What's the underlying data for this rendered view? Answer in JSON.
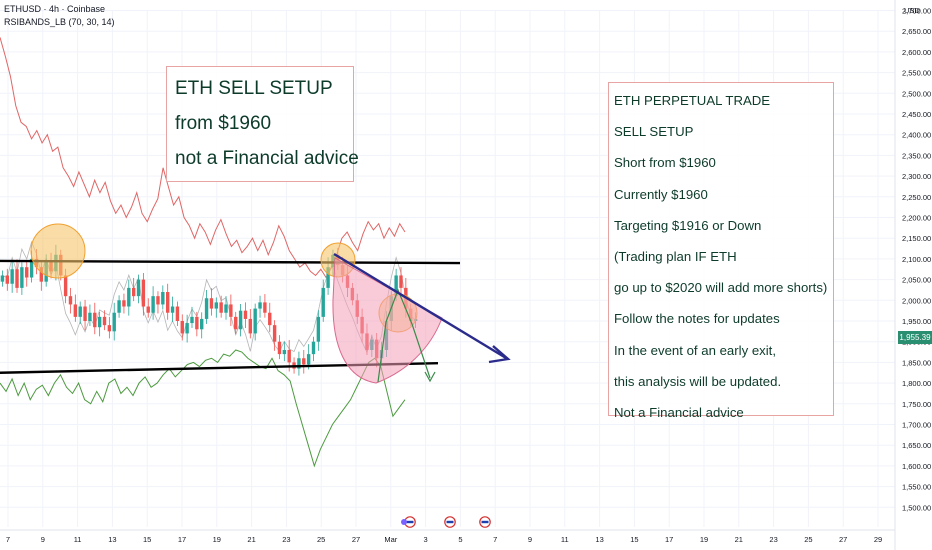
{
  "header": {
    "symbol_line": "ETHUSD · 4h · Coinbase",
    "indicator_line": "RSIBANDS_LB (70, 30, 14)"
  },
  "notes": {
    "left_box": [
      "ETH SELL SETUP",
      "from $1960",
      "not a Financial advice"
    ],
    "right_box": [
      "ETH PERPETUAL TRADE",
      "SELL SETUP",
      "Short from $1960",
      "Currently $1960",
      "Targeting $1916 or Down",
      "(Trading plan IF ETH",
      "go up to $2020 will add more shorts)",
      "Follow the notes for updates",
      "In the event of an early exit,",
      "this analysis will be updated.",
      "Not a Financial advice"
    ]
  },
  "colors": {
    "up_candle": "#26a69a",
    "down_candle": "#ef5350",
    "upper_band": "#e06666",
    "lower_band": "#4c9a3f",
    "middle_line": "#b5b5b5",
    "arrow": "#2b2b8c",
    "circle_fill": "#f6c56b",
    "circle_stroke": "#f0a030",
    "pattern_fill": "#f4a0b8",
    "price_badge": "#2a8f70"
  },
  "chart_data": {
    "type": "candlestick",
    "symbol": "ETHUSD",
    "timeframe": "4h",
    "exchange": "Coinbase",
    "currency_label": "USD",
    "y_axis": {
      "range": [
        1500,
        2700
      ],
      "ticks": [
        "2,700.00",
        "2,650.00",
        "2,600.00",
        "2,550.00",
        "2,500.00",
        "2,450.00",
        "2,400.00",
        "2,350.00",
        "2,300.00",
        "2,250.00",
        "2,200.00",
        "2,150.00",
        "2,100.00",
        "2,050.00",
        "2,000.00",
        "1,950.00",
        "1,900.00",
        "1,850.00",
        "1,800.00",
        "1,750.00",
        "1,700.00",
        "1,650.00",
        "1,600.00",
        "1,550.00",
        "1,500.00"
      ]
    },
    "x_axis": {
      "ticks": [
        "7",
        "9",
        "11",
        "13",
        "15",
        "17",
        "19",
        "21",
        "23",
        "25",
        "27",
        "Mar",
        "3",
        "5",
        "7",
        "9",
        "11",
        "13",
        "15",
        "17",
        "19",
        "21",
        "23",
        "25",
        "27",
        "29"
      ]
    },
    "last_price": "1,955.39",
    "price_path": [
      2060,
      2040,
      2075,
      2030,
      2080,
      2055,
      2100,
      2080,
      2045,
      2095,
      2070,
      2110,
      2060,
      2010,
      1990,
      1960,
      1985,
      1950,
      1970,
      1935,
      1960,
      1940,
      1925,
      1970,
      2000,
      1985,
      2030,
      2010,
      2050,
      1985,
      1970,
      2010,
      1990,
      2020,
      1970,
      1985,
      1950,
      1920,
      1945,
      1960,
      1930,
      1955,
      2005,
      1980,
      1995,
      1970,
      1990,
      1960,
      1930,
      1975,
      1955,
      1920,
      1980,
      1995,
      1970,
      1940,
      1900,
      1870,
      1880,
      1850,
      1835,
      1860,
      1845,
      1870,
      1900,
      1960,
      2030,
      2080,
      2110,
      2085,
      2060,
      2030,
      2000,
      1960,
      1920,
      1880,
      1905,
      1860,
      1880,
      1950,
      2010,
      2060,
      2030,
      1980,
      1950,
      1955
    ],
    "upper_band": [
      2635,
      2590,
      2540,
      2470,
      2430,
      2420,
      2390,
      2410,
      2380,
      2400,
      2360,
      2370,
      2320,
      2300,
      2275,
      2310,
      2280,
      2250,
      2290,
      2260,
      2285,
      2240,
      2210,
      2230,
      2200,
      2225,
      2260,
      2210,
      2190,
      2220,
      2245,
      2320,
      2275,
      2230,
      2250,
      2200,
      2180,
      2150,
      2185,
      2165,
      2135,
      2170,
      2195,
      2160,
      2130,
      2145,
      2115,
      2130,
      2150,
      2120,
      2145,
      2110,
      2140,
      2180,
      2155,
      2120,
      2100,
      2080,
      2090,
      2070,
      2060,
      2075,
      2055,
      2080,
      2110,
      2150,
      2165,
      2140,
      2120,
      2160,
      2190,
      2170,
      2185,
      2150,
      2175,
      2155,
      2185,
      2165
    ],
    "lower_band": [
      1800,
      1780,
      1810,
      1770,
      1800,
      1760,
      1785,
      1795,
      1770,
      1800,
      1820,
      1790,
      1775,
      1800,
      1760,
      1750,
      1780,
      1755,
      1800,
      1810,
      1775,
      1790,
      1770,
      1800,
      1815,
      1790,
      1800,
      1820,
      1835,
      1815,
      1830,
      1845,
      1850,
      1840,
      1855,
      1860,
      1850,
      1870,
      1865,
      1880,
      1875,
      1860,
      1850,
      1840,
      1835,
      1860,
      1830,
      1820,
      1805,
      1750,
      1700,
      1650,
      1600,
      1640,
      1670,
      1700,
      1720,
      1740,
      1760,
      1790,
      1820,
      1850,
      1860,
      1840,
      1780,
      1720,
      1740,
      1760
    ],
    "annotations": {
      "resistance_line": [
        [
          0,
          2095
        ],
        [
          460,
          2090
        ]
      ],
      "support_line": [
        [
          0,
          1825
        ],
        [
          438,
          1848
        ]
      ],
      "down_arrow_from": 1985,
      "down_arrow_to": 1905
    }
  }
}
